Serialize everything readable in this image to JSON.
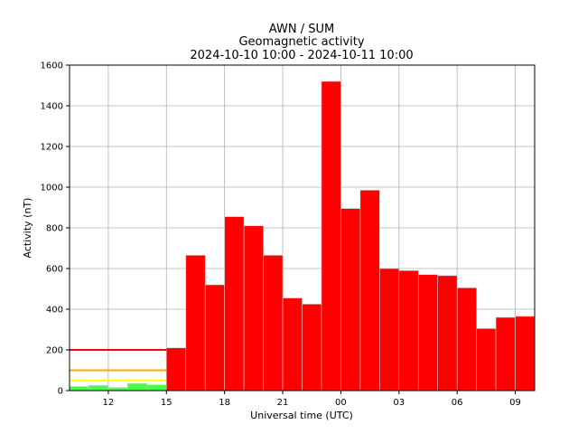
{
  "chart_data": {
    "type": "bar",
    "title": [
      "AWN / SUM",
      "Geomagnetic activity",
      "2024-10-10 10:00 - 2024-10-11 10:00"
    ],
    "xlabel": "Universal time (UTC)",
    "ylabel": "Activity (nT)",
    "ylim": [
      0,
      1600
    ],
    "yticks": [
      0,
      200,
      400,
      600,
      800,
      1000,
      1200,
      1400,
      1600
    ],
    "xticks": [
      {
        "hour": 12,
        "label": "12"
      },
      {
        "hour": 15,
        "label": "15"
      },
      {
        "hour": 18,
        "label": "18"
      },
      {
        "hour": 21,
        "label": "21"
      },
      {
        "hour": 24,
        "label": "00"
      },
      {
        "hour": 27,
        "label": "03"
      },
      {
        "hour": 30,
        "label": "06"
      },
      {
        "hour": 33,
        "label": "09"
      }
    ],
    "xrange_hours": [
      10,
      34
    ],
    "grid": true,
    "bars": [
      {
        "start": 10,
        "value": 20,
        "color": "#44ff44"
      },
      {
        "start": 11,
        "value": 25,
        "color": "#44ff44"
      },
      {
        "start": 12,
        "value": 15,
        "color": "#44ff44"
      },
      {
        "start": 13,
        "value": 35,
        "color": "#44ff44"
      },
      {
        "start": 14,
        "value": 28,
        "color": "#44ff44"
      },
      {
        "start": 15,
        "value": 210,
        "color": "#ff0000"
      },
      {
        "start": 16,
        "value": 665,
        "color": "#ff0000"
      },
      {
        "start": 17,
        "value": 520,
        "color": "#ff0000"
      },
      {
        "start": 18,
        "value": 855,
        "color": "#ff0000"
      },
      {
        "start": 19,
        "value": 810,
        "color": "#ff0000"
      },
      {
        "start": 20,
        "value": 665,
        "color": "#ff0000"
      },
      {
        "start": 21,
        "value": 455,
        "color": "#ff0000"
      },
      {
        "start": 22,
        "value": 425,
        "color": "#ff0000"
      },
      {
        "start": 23,
        "value": 1520,
        "color": "#ff0000"
      },
      {
        "start": 24,
        "value": 895,
        "color": "#ff0000"
      },
      {
        "start": 25,
        "value": 985,
        "color": "#ff0000"
      },
      {
        "start": 26,
        "value": 600,
        "color": "#ff0000"
      },
      {
        "start": 27,
        "value": 590,
        "color": "#ff0000"
      },
      {
        "start": 28,
        "value": 570,
        "color": "#ff0000"
      },
      {
        "start": 29,
        "value": 565,
        "color": "#ff0000"
      },
      {
        "start": 30,
        "value": 505,
        "color": "#ff0000"
      },
      {
        "start": 31,
        "value": 305,
        "color": "#ff0000"
      },
      {
        "start": 32,
        "value": 360,
        "color": "#ff0000"
      },
      {
        "start": 33,
        "value": 365,
        "color": "#ff0000"
      }
    ],
    "threshold_lines": [
      {
        "value": 200,
        "color": "#ff0000",
        "x_start": 10,
        "x_end": 15
      },
      {
        "value": 100,
        "color": "#ffa500",
        "x_start": 10,
        "x_end": 15
      },
      {
        "value": 50,
        "color": "#ffff00",
        "x_start": 10,
        "x_end": 15
      }
    ]
  }
}
